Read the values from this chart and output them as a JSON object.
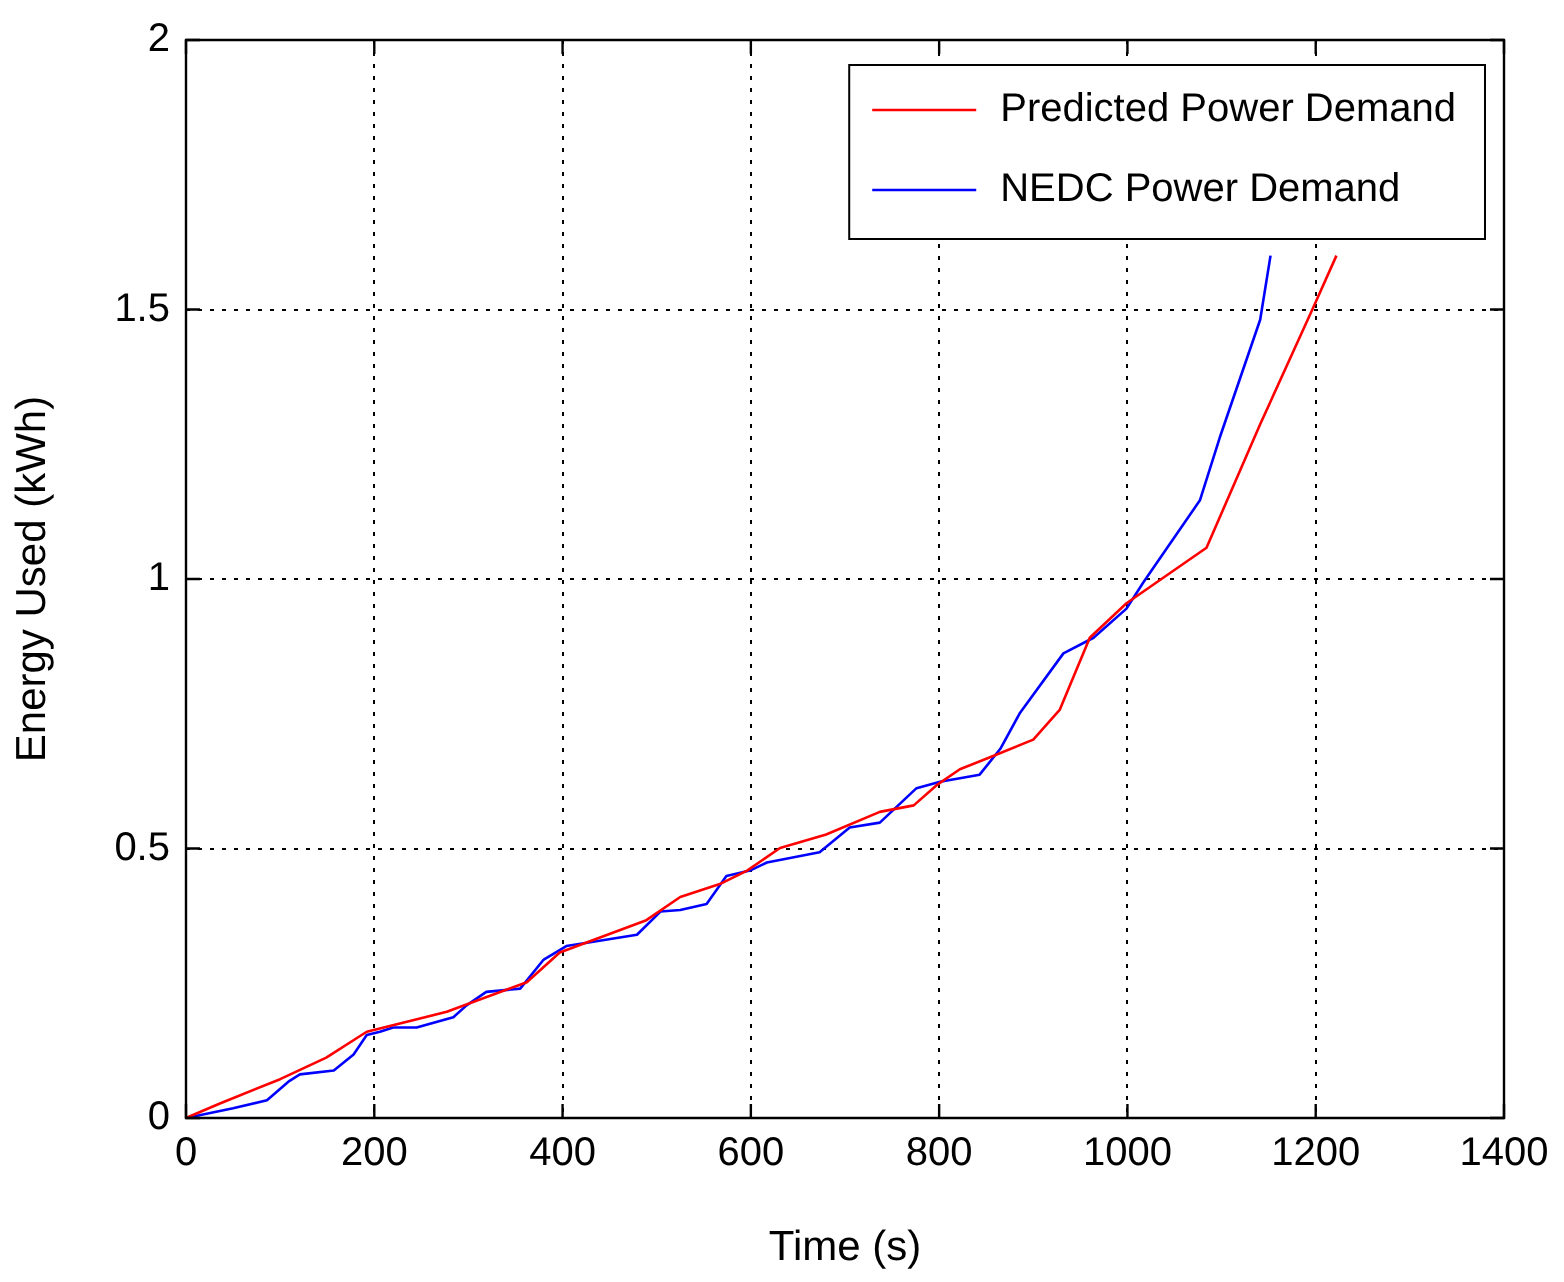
{
  "chart_data": {
    "type": "line",
    "xlabel": "Time (s)",
    "ylabel": "Energy Used (kWh)",
    "xlim": [
      0,
      1400
    ],
    "xticks": [
      0,
      200,
      400,
      600,
      800,
      1000,
      1200,
      1400
    ],
    "ylim": [
      0,
      2
    ],
    "yticks": [
      0,
      0.5,
      1,
      1.5,
      2
    ],
    "grid": true,
    "legend": "top right",
    "marker": "none",
    "line_style": "solid",
    "series": [
      {
        "name": "Predicted Power Demand",
        "color": "#ff0000",
        "x": [
          0,
          36,
          100,
          149,
          192,
          277,
          362,
          397,
          489,
          525,
          546,
          567,
          596,
          631,
          680,
          737,
          773,
          797,
          822,
          858,
          900,
          928,
          960,
          999,
          1084,
          1141,
          1198,
          1222
        ],
        "values": [
          0,
          0.027,
          0.072,
          0.112,
          0.16,
          0.197,
          0.252,
          0.307,
          0.367,
          0.41,
          0.422,
          0.434,
          0.459,
          0.501,
          0.526,
          0.568,
          0.58,
          0.617,
          0.647,
          0.672,
          0.702,
          0.757,
          0.891,
          0.955,
          1.058,
          1.287,
          1.506,
          1.6
        ]
      },
      {
        "name": "NEDC Power Demand",
        "color": "#0000ff",
        "x": [
          0,
          50,
          86,
          110,
          121,
          157,
          178,
          192,
          206,
          220,
          245,
          284,
          298,
          319,
          355,
          380,
          404,
          426,
          479,
          504,
          525,
          553,
          574,
          599,
          617,
          673,
          705,
          737,
          776,
          801,
          843,
          865,
          886,
          932,
          964,
          999,
          1017,
          1077,
          1098,
          1141,
          1152
        ],
        "values": [
          0,
          0.018,
          0.033,
          0.069,
          0.081,
          0.088,
          0.118,
          0.154,
          0.16,
          0.168,
          0.168,
          0.187,
          0.209,
          0.234,
          0.24,
          0.294,
          0.319,
          0.325,
          0.34,
          0.383,
          0.386,
          0.397,
          0.449,
          0.459,
          0.474,
          0.493,
          0.539,
          0.548,
          0.612,
          0.624,
          0.637,
          0.685,
          0.752,
          0.862,
          0.891,
          0.945,
          0.994,
          1.146,
          1.262,
          1.481,
          1.6
        ]
      }
    ]
  }
}
